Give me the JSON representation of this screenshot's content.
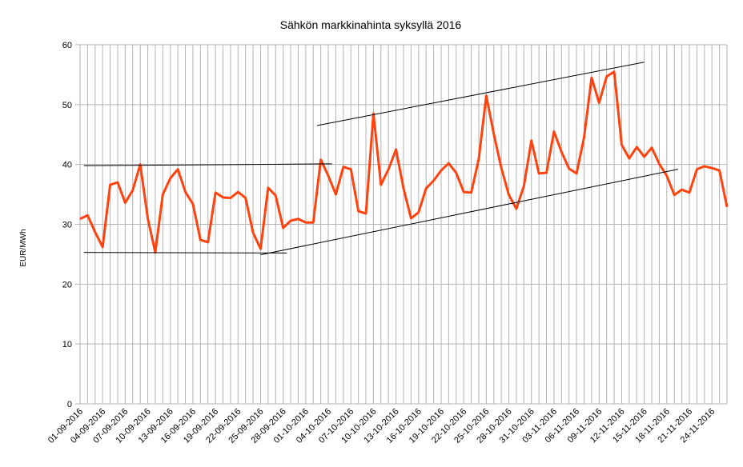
{
  "chart_data": {
    "type": "line",
    "title": "Sähkön markkinahinta syksyllä 2016",
    "y_label": "EUR/MWh",
    "categories": [
      "01-09-2016",
      null,
      null,
      "04-09-2016",
      null,
      null,
      "07-09-2016",
      null,
      null,
      "10-09-2016",
      null,
      null,
      "13-09-2016",
      null,
      null,
      "16-09-2016",
      null,
      null,
      "19-09-2016",
      null,
      null,
      "22-09-2016",
      null,
      null,
      "25-09-2016",
      null,
      null,
      "28-09-2016",
      null,
      null,
      "01-10-2016",
      null,
      null,
      "04-10-2016",
      null,
      null,
      "07-10-2016",
      null,
      null,
      "10-10-2016",
      null,
      null,
      "13-10-2016",
      null,
      null,
      "16-10-2016",
      null,
      null,
      "19-10-2016",
      null,
      null,
      "22-10-2016",
      null,
      null,
      "25-10-2016",
      null,
      null,
      "28-10-2016",
      null,
      null,
      "31-10-2016",
      null,
      null,
      "03-11-2016",
      null,
      null,
      "06-11-2016",
      null,
      null,
      "09-11-2016",
      null,
      null,
      "12-11-2016",
      null,
      null,
      "15-11-2016",
      null,
      null,
      "18-11-2016",
      null,
      null,
      "21-11-2016",
      null,
      null,
      "24-11-2016",
      null,
      null
    ],
    "values": [
      30.9,
      31.5,
      28.7,
      26.2,
      36.6,
      37.0,
      33.6,
      35.7,
      40.0,
      31.0,
      25.3,
      35.0,
      37.7,
      39.2,
      35.4,
      33.4,
      27.4,
      27.0,
      35.3,
      34.5,
      34.4,
      35.4,
      34.4,
      28.6,
      25.9,
      36.1,
      34.8,
      29.4,
      30.6,
      30.9,
      30.3,
      30.3,
      40.8,
      38.1,
      35.0,
      39.6,
      39.2,
      32.2,
      31.8,
      48.5,
      36.6,
      39.2,
      42.5,
      36.0,
      31.0,
      32.0,
      36.0,
      37.3,
      39.0,
      40.2,
      38.6,
      35.4,
      35.3,
      40.9,
      51.5,
      45.1,
      39.4,
      34.9,
      32.6,
      36.4,
      44.0,
      38.5,
      38.6,
      45.5,
      42.1,
      39.3,
      38.5,
      44.5,
      54.5,
      50.3,
      54.7,
      55.5,
      43.3,
      41.0,
      42.9,
      41.3,
      42.8,
      40.1,
      38.1,
      34.9,
      35.8,
      35.3,
      39.2,
      39.7,
      39.4,
      39.0,
      32.9
    ],
    "color": "#ff420e",
    "ylim": [
      0,
      60
    ],
    "yticks": [
      0,
      10,
      20,
      30,
      40,
      50,
      60
    ],
    "grid": true,
    "reference_lines": [
      {
        "x": [
          0.5,
          33.5
        ],
        "y": [
          39.8,
          40.1
        ]
      },
      {
        "x": [
          0.5,
          27.5
        ],
        "y": [
          25.3,
          25.2
        ]
      },
      {
        "x": [
          31.5,
          75
        ],
        "y": [
          46.5,
          57.1
        ]
      },
      {
        "x": [
          24,
          79.5
        ],
        "y": [
          24.9,
          39.2
        ]
      }
    ],
    "reference_color": "#000000"
  }
}
